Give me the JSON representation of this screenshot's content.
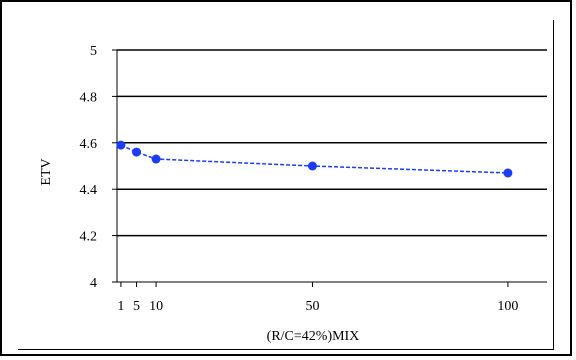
{
  "chart_data": {
    "type": "line",
    "xlabel": "(R/C=42%)MIX",
    "ylabel": "ETV",
    "x_ticks": [
      "1",
      "5",
      "10",
      "50",
      "100"
    ],
    "y_ticks": [
      "4",
      "4.2",
      "4.4",
      "4.6",
      "4.8",
      "5"
    ],
    "xlim": [
      0,
      110
    ],
    "ylim": [
      4,
      5
    ],
    "grid": "horizontal",
    "legend": "none",
    "series": [
      {
        "x": [
          1,
          5,
          10,
          50,
          100
        ],
        "y": [
          4.59,
          4.56,
          4.53,
          4.5,
          4.47
        ]
      }
    ],
    "colors": {
      "series": "#1a3cff",
      "grid": "#000000",
      "axis": "#000000"
    }
  }
}
